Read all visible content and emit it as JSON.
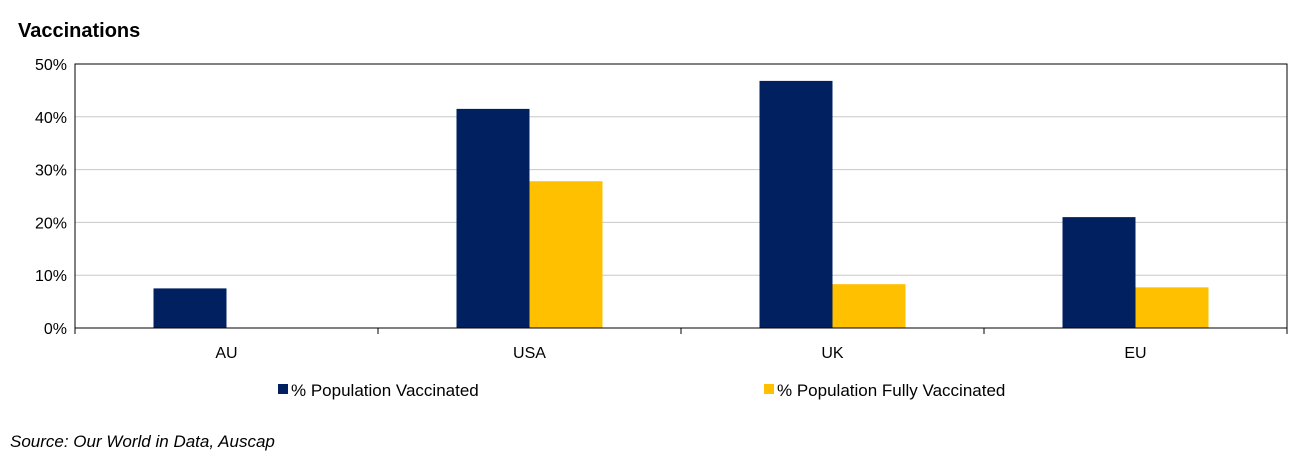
{
  "chart_data": {
    "type": "bar",
    "title": "Vaccinations",
    "categories": [
      "AU",
      "USA",
      "UK",
      "EU"
    ],
    "series": [
      {
        "name": "% Population Vaccinated",
        "color": "#002060",
        "values": [
          7.5,
          41.5,
          46.8,
          21.0
        ]
      },
      {
        "name": "% Population Fully Vaccinated",
        "color": "#FFC000",
        "values": [
          0,
          27.8,
          8.3,
          7.7
        ]
      }
    ],
    "yticks": [
      "0%",
      "10%",
      "20%",
      "30%",
      "40%",
      "50%"
    ],
    "ylim": [
      0,
      50
    ],
    "grid": true,
    "legend": "bottom",
    "source": "Source: Our World in Data, Auscap"
  }
}
